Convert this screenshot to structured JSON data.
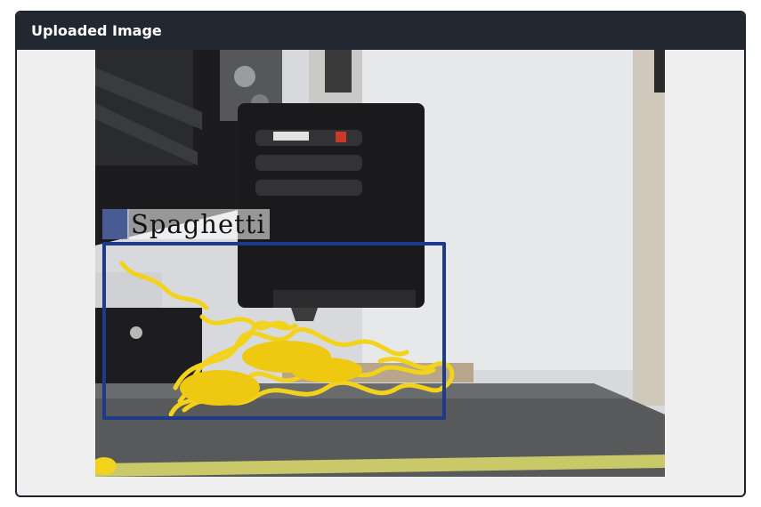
{
  "panel": {
    "title": "Uploaded Image"
  },
  "detection": {
    "label": "Spaghetti",
    "box_color": "#1e3a8a",
    "swatch_color": "#5067a8"
  }
}
